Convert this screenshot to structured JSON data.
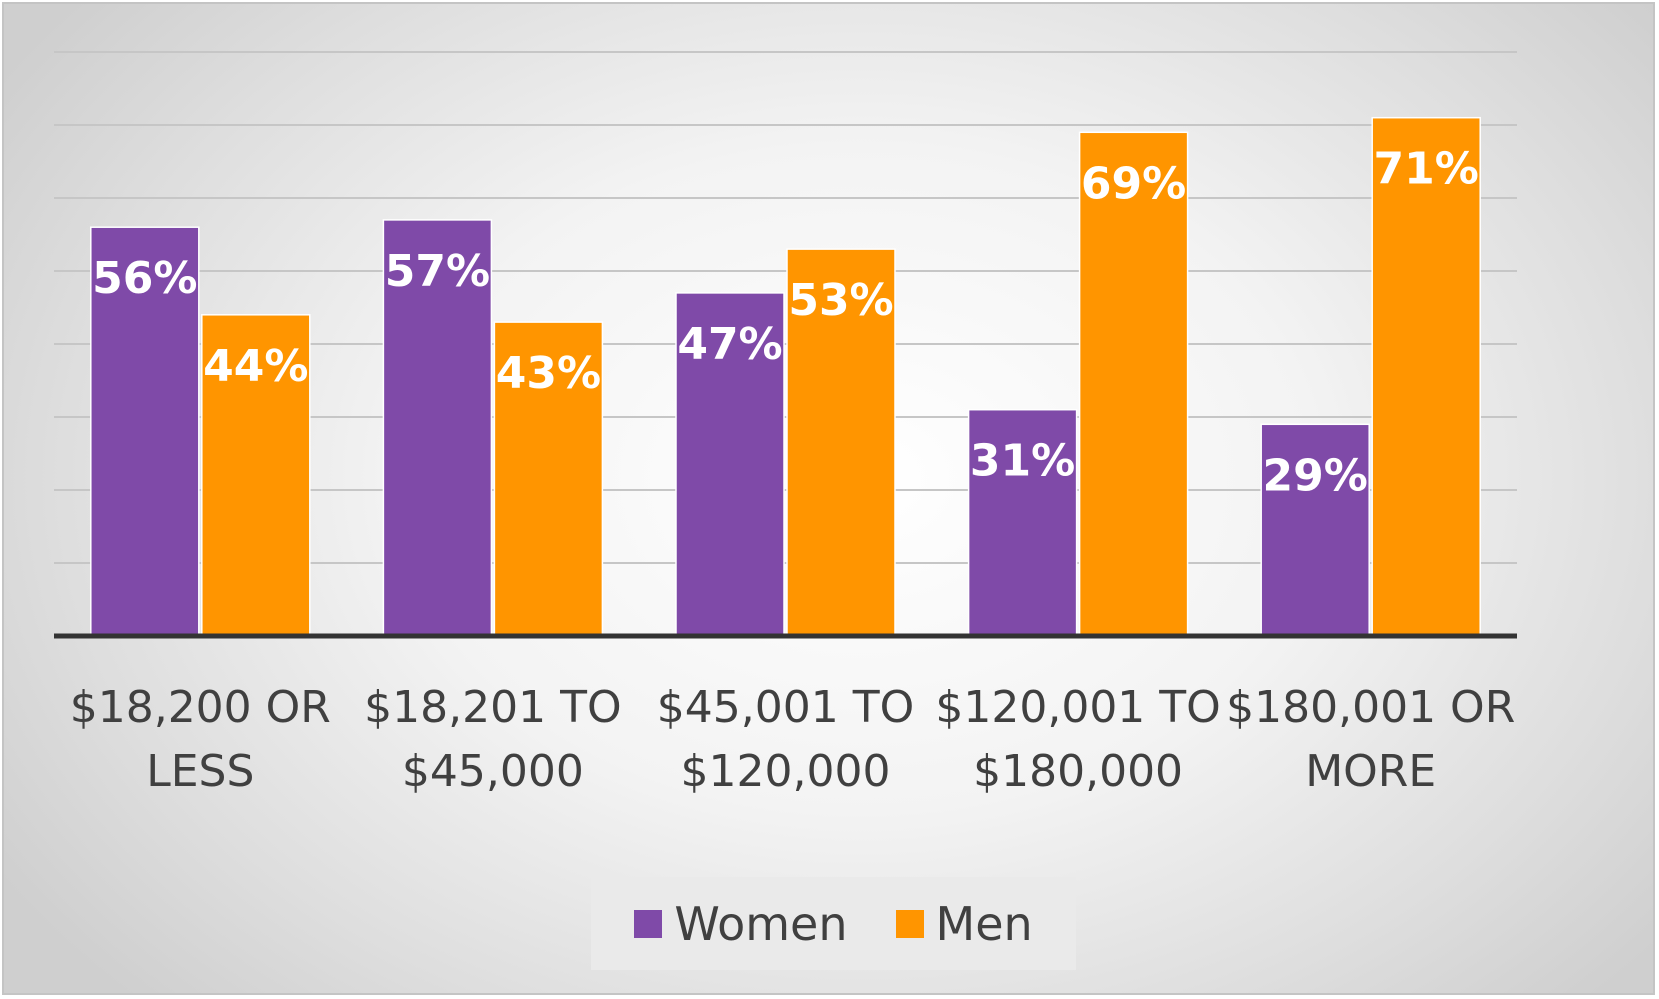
{
  "chart_data": {
    "type": "bar",
    "title": "",
    "xlabel": "",
    "ylabel": "",
    "categories": [
      [
        "$18,200 OR",
        "LESS"
      ],
      [
        "$18,201 TO",
        "$45,000"
      ],
      [
        "$45,001 TO",
        "$120,000"
      ],
      [
        "$120,001 TO",
        "$180,000"
      ],
      [
        "$180,001 OR",
        "MORE"
      ]
    ],
    "series": [
      {
        "name": "Women",
        "color": "#7f4aa8",
        "values": [
          56,
          57,
          47,
          31,
          29
        ],
        "labels": [
          "56%",
          "57%",
          "47%",
          "31%",
          "29%"
        ]
      },
      {
        "name": "Men",
        "color": "#ff9500",
        "values": [
          44,
          43,
          53,
          69,
          71
        ],
        "labels": [
          "44%",
          "43%",
          "53%",
          "69%",
          "71%"
        ]
      }
    ],
    "ylim": [
      0,
      80
    ],
    "grid": true,
    "legend_position": "bottom"
  }
}
